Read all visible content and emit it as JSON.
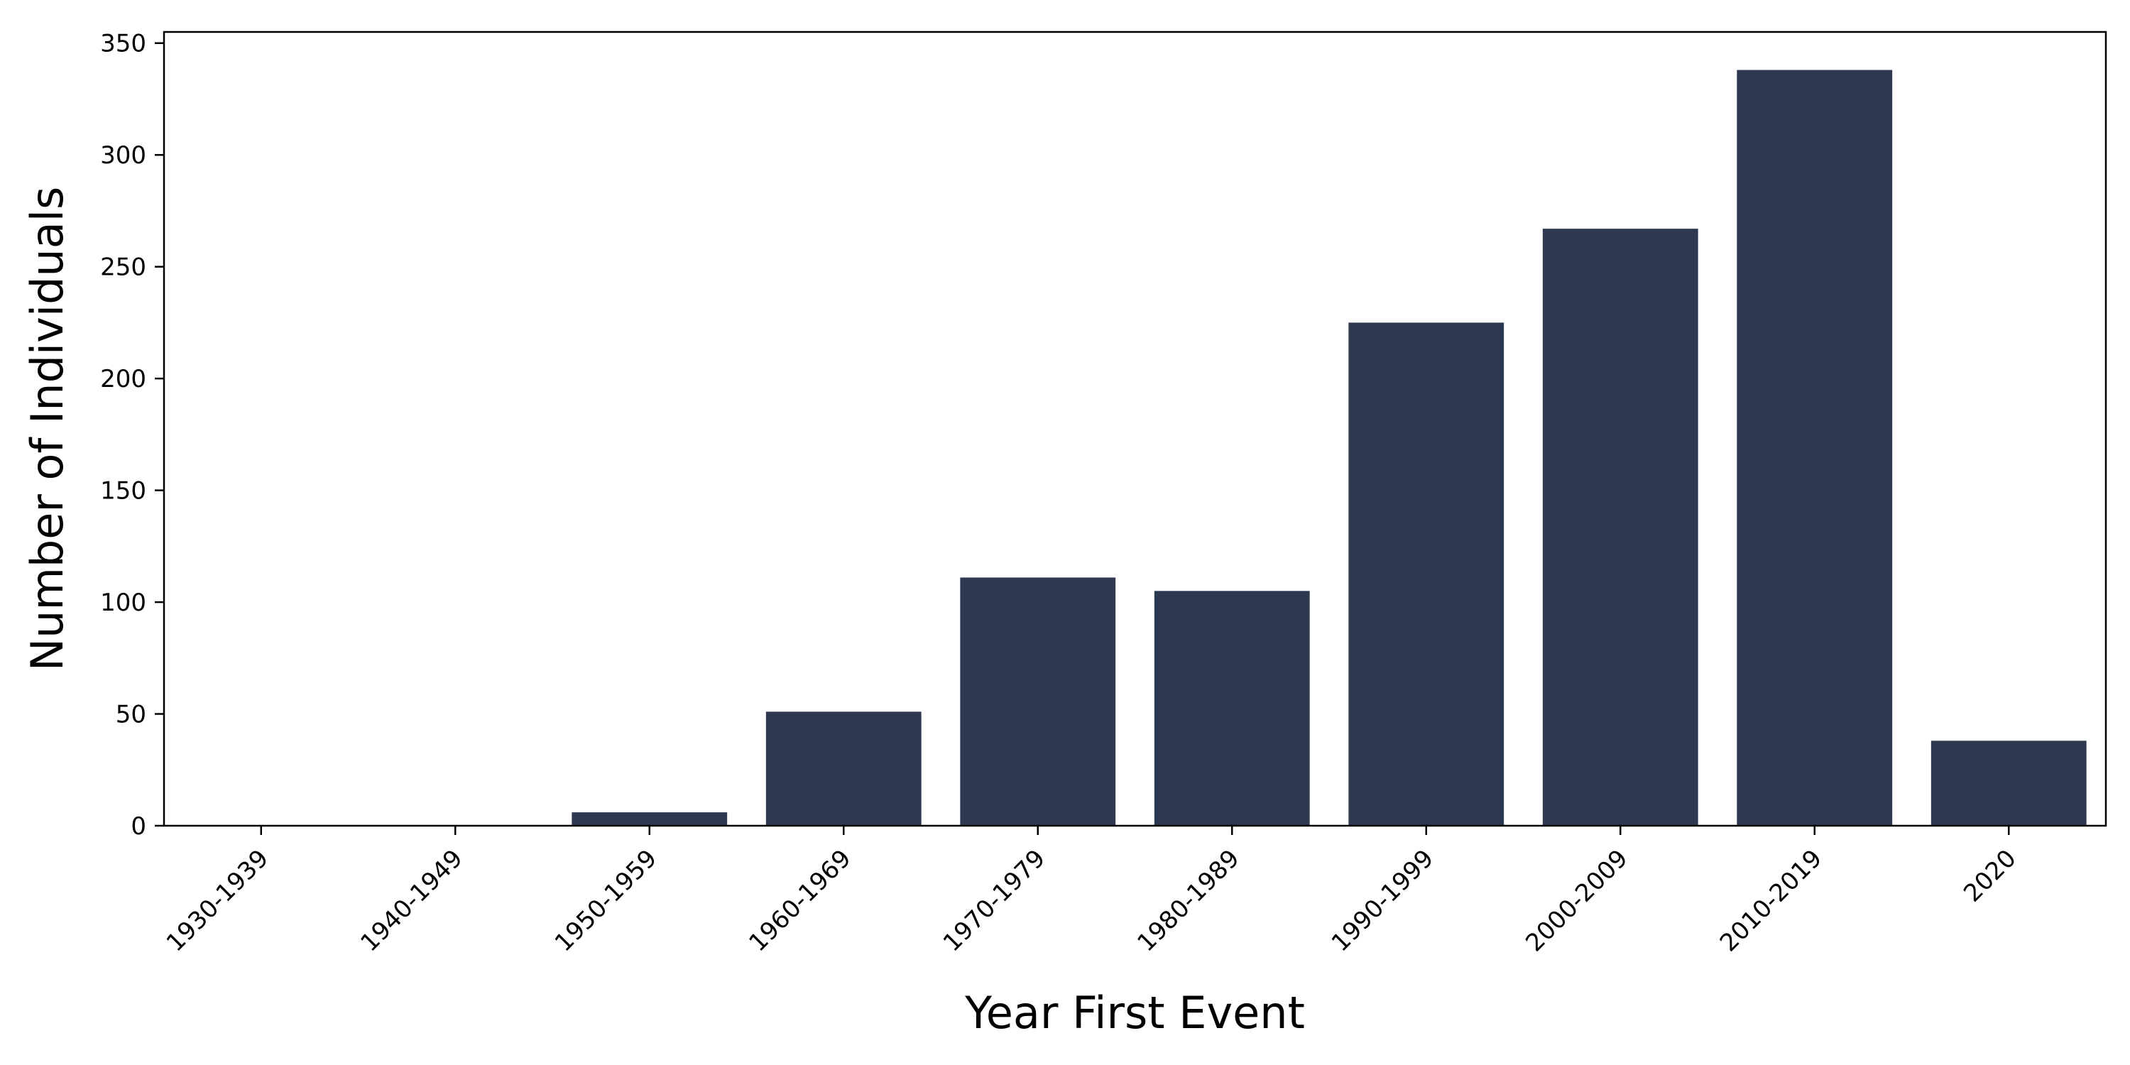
{
  "chart_data": {
    "type": "bar",
    "title": "",
    "xlabel": "Year First Event",
    "ylabel": "Number of Individuals",
    "categories": [
      "1930-1939",
      "1940-1949",
      "1950-1959",
      "1960-1969",
      "1970-1979",
      "1980-1989",
      "1990-1999",
      "2000-2009",
      "2010-2019",
      "2020"
    ],
    "values": [
      0,
      0,
      6,
      51,
      111,
      105,
      225,
      267,
      338,
      38
    ],
    "ylim": [
      0,
      355
    ],
    "yticks": [
      0,
      50,
      100,
      150,
      200,
      250,
      300,
      350
    ],
    "grid": false,
    "legend": "none",
    "bar_color": "#2d3950",
    "axis_color": "#000000"
  }
}
